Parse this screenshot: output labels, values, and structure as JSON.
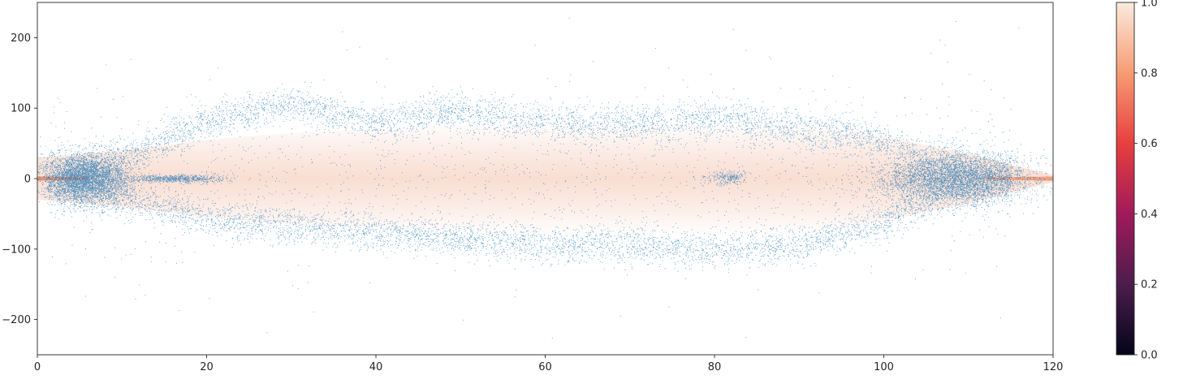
{
  "chart_data": {
    "type": "scatter",
    "title": "",
    "xlabel": "",
    "ylabel": "",
    "xlim": [
      0,
      120
    ],
    "ylim": [
      -250,
      250
    ],
    "x_ticks": [
      0,
      20,
      40,
      60,
      80,
      100,
      120
    ],
    "y_ticks": [
      -200,
      -100,
      0,
      100,
      200
    ],
    "grid": false,
    "scatter_color": "#1f77b4",
    "band_color": "#f7d3c4",
    "band_peak_color": "#f08a60",
    "colorbar": {
      "label": "",
      "range": [
        0.0,
        1.0
      ],
      "ticks": [
        "0.0",
        "0.2",
        "0.4",
        "0.6",
        "0.8",
        "1.0"
      ],
      "colormap": "rocket",
      "stops": [
        "#03051a",
        "#4c1d4b",
        "#a11a5b",
        "#e83f3f",
        "#f69c73",
        "#faebdd"
      ]
    },
    "series": [
      {
        "kind": "point-cloud",
        "features": [
          {
            "feature": "upper arc",
            "x": [
              1,
              10,
              20,
              30,
              40,
              50,
              60,
              70,
              80,
              90,
              100,
              106,
              115
            ],
            "y": [
              8,
              28,
              80,
              108,
              80,
              95,
              80,
              78,
              85,
              70,
              55,
              28,
              8
            ]
          },
          {
            "feature": "lower arc",
            "x": [
              1,
              10,
              20,
              30,
              40,
              50,
              60,
              70,
              80,
              90,
              100,
              106,
              115
            ],
            "y": [
              -8,
              -28,
              -55,
              -68,
              -75,
              -85,
              -92,
              -95,
              -100,
              -95,
              -60,
              -28,
              -8
            ]
          },
          {
            "feature": "left cluster",
            "x_range": [
              0.5,
              11
            ],
            "y_range": [
              -38,
              38
            ]
          },
          {
            "feature": "right cluster",
            "x_range": [
              99,
              117
            ],
            "y_range": [
              -38,
              38
            ]
          },
          {
            "feature": "left spur",
            "x_range": [
              11,
              22
            ],
            "y_range": [
              -6,
              6
            ]
          },
          {
            "feature": "mid blob",
            "x_range": [
              79,
              84
            ],
            "y_range": [
              -10,
              14
            ]
          }
        ]
      },
      {
        "kind": "density-band",
        "x": [
          0,
          10,
          20,
          30,
          40,
          50,
          60,
          70,
          80,
          90,
          100,
          110,
          120
        ],
        "half_width": [
          30,
          40,
          55,
          65,
          70,
          75,
          78,
          80,
          82,
          80,
          60,
          35,
          5
        ]
      }
    ]
  }
}
